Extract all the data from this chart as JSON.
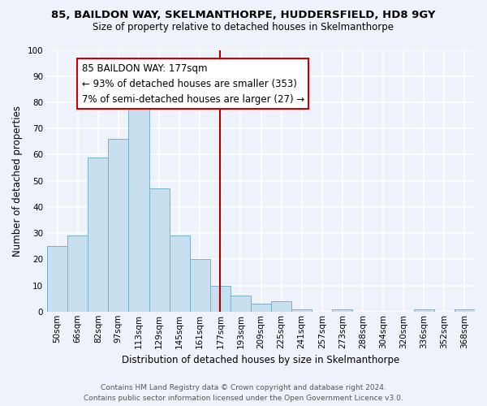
{
  "title1": "85, BAILDON WAY, SKELMANTHORPE, HUDDERSFIELD, HD8 9GY",
  "title2": "Size of property relative to detached houses in Skelmanthorpe",
  "xlabel": "Distribution of detached houses by size in Skelmanthorpe",
  "ylabel": "Number of detached properties",
  "bar_labels": [
    "50sqm",
    "66sqm",
    "82sqm",
    "97sqm",
    "113sqm",
    "129sqm",
    "145sqm",
    "161sqm",
    "177sqm",
    "193sqm",
    "209sqm",
    "225sqm",
    "241sqm",
    "257sqm",
    "273sqm",
    "288sqm",
    "304sqm",
    "320sqm",
    "336sqm",
    "352sqm",
    "368sqm"
  ],
  "bar_values": [
    25,
    29,
    59,
    66,
    80,
    47,
    29,
    20,
    10,
    6,
    3,
    4,
    1,
    0,
    1,
    0,
    0,
    0,
    1,
    0,
    1
  ],
  "bar_color": "#c8dff0",
  "bar_edge_color": "#7ab0cc",
  "vline_x_index": 8,
  "vline_color": "#aa0000",
  "annotation_title": "85 BAILDON WAY: 177sqm",
  "annotation_line1": "← 93% of detached houses are smaller (353)",
  "annotation_line2": "7% of semi-detached houses are larger (27) →",
  "annotation_box_color": "#ffffff",
  "annotation_box_edge": "#cc0000",
  "ylim": [
    0,
    100
  ],
  "yticks": [
    0,
    10,
    20,
    30,
    40,
    50,
    60,
    70,
    80,
    90,
    100
  ],
  "footer1": "Contains HM Land Registry data © Crown copyright and database right 2024.",
  "footer2": "Contains public sector information licensed under the Open Government Licence v3.0.",
  "bg_color": "#eef2fa",
  "grid_color": "#ffffff",
  "title1_fontsize": 9.5,
  "title2_fontsize": 8.5,
  "ylabel_fontsize": 8.5,
  "xlabel_fontsize": 8.5,
  "annot_fontsize": 8.5,
  "tick_fontsize": 7.5,
  "footer_fontsize": 6.5
}
